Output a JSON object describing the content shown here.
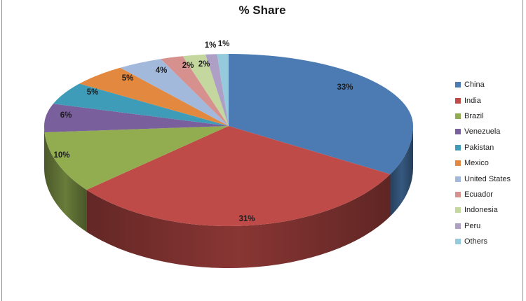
{
  "title": "% Share",
  "chart_data": {
    "type": "pie",
    "style": "3d",
    "title": "% Share",
    "legend_position": "right",
    "unit": "percent",
    "slices": [
      {
        "label": "China",
        "value": 33,
        "display": "33%",
        "color": "#4B7BB2"
      },
      {
        "label": "India",
        "value": 31,
        "display": "31%",
        "color": "#BE4B48"
      },
      {
        "label": "Brazil",
        "value": 10,
        "display": "10%",
        "color": "#92AC50"
      },
      {
        "label": "Venezuela",
        "value": 6,
        "display": "6%",
        "color": "#7A5F9D"
      },
      {
        "label": "Pakistan",
        "value": 5,
        "display": "5%",
        "color": "#3F9CB8"
      },
      {
        "label": "Mexico",
        "value": 5,
        "display": "5%",
        "color": "#E2883F"
      },
      {
        "label": "United States",
        "value": 4,
        "display": "4%",
        "color": "#A3B9DC"
      },
      {
        "label": "Ecuador",
        "value": 2,
        "display": "2%",
        "color": "#D6918F"
      },
      {
        "label": "Indonesia",
        "value": 2,
        "display": "2%",
        "color": "#C4D79E"
      },
      {
        "label": "Peru",
        "value": 1,
        "display": "1%",
        "color": "#AE9FC6"
      },
      {
        "label": "Others",
        "value": 1,
        "display": "1%",
        "color": "#94CADC"
      }
    ]
  }
}
